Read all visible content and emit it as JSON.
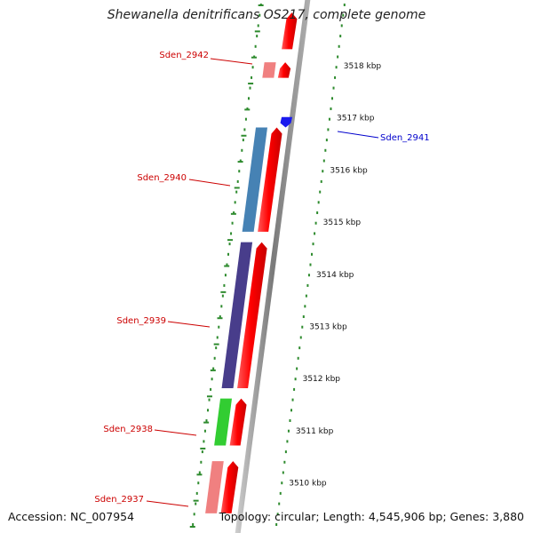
{
  "title": "Shewanella denitrificans OS217, complete genome",
  "footer": {
    "accession": "Accession: NC_007954",
    "topology": "Topology: circular; Length: 4,545,906 bp; Genes: 3,880"
  },
  "scale_labels": [
    {
      "text": "3518 kbp",
      "kbp": 3518
    },
    {
      "text": "3517 kbp",
      "kbp": 3517
    },
    {
      "text": "3516 kbp",
      "kbp": 3516
    },
    {
      "text": "3515 kbp",
      "kbp": 3515
    },
    {
      "text": "3514 kbp",
      "kbp": 3514
    },
    {
      "text": "3513 kbp",
      "kbp": 3513
    },
    {
      "text": "3512 kbp",
      "kbp": 3512
    },
    {
      "text": "3511 kbp",
      "kbp": 3511
    },
    {
      "text": "3510 kbp",
      "kbp": 3510
    }
  ],
  "genes": [
    {
      "label": "Sden_2942",
      "label_color": "#cc0000",
      "strand": "reverse",
      "color": "#f08080",
      "start_kbp": 3517.75,
      "end_kbp": 3518.05
    },
    {
      "label": "Sden_2941",
      "label_color": "#0000cc",
      "strand": "forward",
      "color": "#1a1aee",
      "start_kbp": 3516.8,
      "end_kbp": 3517.0
    },
    {
      "label": "Sden_2940",
      "label_color": "#cc0000",
      "strand": "reverse",
      "color": "#4682b4",
      "start_kbp": 3514.8,
      "end_kbp": 3516.8
    },
    {
      "label": "Sden_2939",
      "label_color": "#cc0000",
      "strand": "reverse",
      "color": "#483d8b",
      "start_kbp": 3511.8,
      "end_kbp": 3514.6
    },
    {
      "label": "Sden_2938",
      "label_color": "#cc0000",
      "strand": "reverse",
      "color": "#32cd32",
      "start_kbp": 3510.7,
      "end_kbp": 3511.6
    },
    {
      "label": "Sden_2937",
      "label_color": "#cc0000",
      "strand": "reverse",
      "color": "#f08080",
      "start_kbp": 3509.4,
      "end_kbp": 3510.4
    }
  ],
  "cds_bars": [
    {
      "start_kbp": 3518.3,
      "end_kbp": 3519.0
    },
    {
      "start_kbp": 3517.75,
      "end_kbp": 3518.05
    },
    {
      "start_kbp": 3514.8,
      "end_kbp": 3516.8
    },
    {
      "start_kbp": 3511.8,
      "end_kbp": 3514.6
    },
    {
      "start_kbp": 3510.7,
      "end_kbp": 3511.6
    },
    {
      "start_kbp": 3509.4,
      "end_kbp": 3510.4
    }
  ],
  "colors": {
    "cds": "#ff0000",
    "backbone": "#888888",
    "ticks": "#2e8b2e"
  }
}
